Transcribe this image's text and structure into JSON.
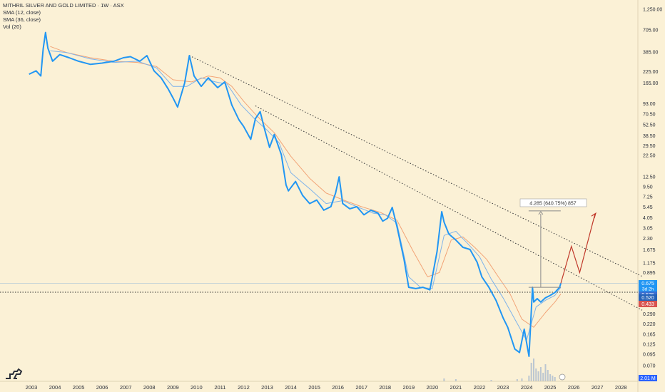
{
  "legend": {
    "title": "MITHRIL SILVER AND GOLD LIMITED · 1W · ASX",
    "sma12": "SMA (12, close)",
    "sma36": "SMA (36, close)",
    "vol": "Vol (20)"
  },
  "colors": {
    "background": "#fbf1d6",
    "price": "#2196f3",
    "sma12": "#7fb3ea",
    "sma36": "#f2a477",
    "trend": "#444444",
    "projection": "#c0392b",
    "measure": "#8a8a8a",
    "badge_price": "#2196f3",
    "badge_sma12": "#3a6fd0",
    "badge_sma36": "#d9534f",
    "volume": "#9fb4cf"
  },
  "chart_data": {
    "type": "line",
    "x_axis_labels": [
      "2003",
      "2004",
      "2005",
      "2006",
      "2007",
      "2008",
      "2009",
      "2010",
      "2011",
      "2012",
      "2013",
      "2014",
      "2015",
      "2016",
      "2017",
      "2018",
      "2019",
      "2020",
      "2021",
      "2022",
      "2023",
      "2024",
      "2025",
      "2026",
      "2027",
      "2028"
    ],
    "y_axis_labels": [
      "1,250.00",
      "705.00",
      "385.00",
      "225.00",
      "165.00",
      "93.00",
      "70.50",
      "52.50",
      "38.50",
      "29.50",
      "22.50",
      "12.50",
      "9.50",
      "7.25",
      "5.45",
      "4.05",
      "3.05",
      "2.30",
      "1.675",
      "1.175",
      "0.895",
      "0.675",
      "0.525",
      "0.390",
      "0.290",
      "0.220",
      "0.165",
      "0.125",
      "0.095",
      "0.070",
      "0.050"
    ],
    "y_scale": "log",
    "series": [
      {
        "name": "price",
        "x": [
          2002.9,
          2003.2,
          2003.4,
          2003.5,
          2003.6,
          2003.7,
          2003.9,
          2004.2,
          2004.6,
          2005.0,
          2005.5,
          2006.0,
          2006.5,
          2006.9,
          2007.2,
          2007.6,
          2007.9,
          2008.2,
          2008.5,
          2008.8,
          2009.0,
          2009.2,
          2009.5,
          2009.7,
          2009.9,
          2010.2,
          2010.5,
          2010.9,
          2011.2,
          2011.5,
          2011.8,
          2012.0,
          2012.3,
          2012.5,
          2012.7,
          2012.9,
          2013.1,
          2013.3,
          2013.6,
          2013.8,
          2013.9,
          2014.2,
          2014.5,
          2014.8,
          2015.1,
          2015.4,
          2015.7,
          2015.9,
          2016.05,
          2016.2,
          2016.5,
          2016.8,
          2017.1,
          2017.4,
          2017.7,
          2017.9,
          2018.1,
          2018.3,
          2018.5,
          2018.8,
          2019.0,
          2019.3,
          2019.6,
          2019.9,
          2020.2,
          2020.4,
          2020.5,
          2020.7,
          2021.0,
          2021.3,
          2021.6,
          2021.9,
          2022.1,
          2022.4,
          2022.7,
          2023.0,
          2023.2,
          2023.5,
          2023.7,
          2023.9,
          2024.1,
          2024.25,
          2024.3,
          2024.45,
          2024.6,
          2024.8,
          2025.0,
          2025.2,
          2025.4,
          2025.45
        ],
        "y": [
          210,
          230,
          200,
          420,
          660,
          430,
          300,
          360,
          330,
          300,
          275,
          285,
          300,
          330,
          340,
          300,
          350,
          230,
          190,
          140,
          110,
          85,
          165,
          350,
          200,
          150,
          190,
          145,
          170,
          90,
          60,
          50,
          35,
          62,
          75,
          45,
          28,
          40,
          23,
          10,
          8.5,
          11,
          7.5,
          6,
          6.6,
          5,
          5.5,
          8,
          12.5,
          6,
          5.2,
          5.5,
          4.4,
          5,
          4.6,
          3.7,
          4,
          5.4,
          3.2,
          1.3,
          0.6,
          0.58,
          0.6,
          0.56,
          1.6,
          4.8,
          3.6,
          2.6,
          2.2,
          1.8,
          1.7,
          1.2,
          0.8,
          0.6,
          0.42,
          0.26,
          0.2,
          0.11,
          0.1,
          0.19,
          0.09,
          0.6,
          0.4,
          0.44,
          0.4,
          0.45,
          0.48,
          0.52,
          0.6,
          0.67
        ]
      },
      {
        "name": "SMA (12, close)",
        "x": [
          2003.8,
          2004.5,
          2005.5,
          2006.5,
          2007.5,
          2008.3,
          2009.0,
          2009.6,
          2010.2,
          2010.8,
          2011.3,
          2011.9,
          2012.5,
          2013.0,
          2013.5,
          2014.0,
          2014.8,
          2015.5,
          2016.2,
          2016.8,
          2017.5,
          2018.0,
          2018.5,
          2019.0,
          2019.5,
          2020.0,
          2020.5,
          2021.0,
          2021.5,
          2022.0,
          2022.5,
          2023.0,
          2023.5,
          2024.0,
          2024.4,
          2024.8,
          2025.2,
          2025.45
        ],
        "y": [
          400,
          380,
          320,
          290,
          300,
          250,
          150,
          150,
          190,
          170,
          160,
          90,
          60,
          45,
          32,
          14,
          9,
          6,
          6.5,
          5.5,
          4.6,
          4.4,
          3.5,
          0.8,
          0.6,
          0.58,
          2.5,
          2.8,
          2,
          1.4,
          0.75,
          0.45,
          0.25,
          0.14,
          0.35,
          0.42,
          0.48,
          0.6
        ]
      },
      {
        "name": "SMA (36, close)",
        "x": [
          2003.8,
          2004.5,
          2005.5,
          2006.5,
          2007.5,
          2008.3,
          2009.0,
          2009.8,
          2010.5,
          2011.0,
          2011.5,
          2012.0,
          2012.6,
          2013.3,
          2014.0,
          2014.8,
          2015.5,
          2016.3,
          2017.0,
          2017.8,
          2018.5,
          2019.2,
          2019.8,
          2020.3,
          2020.8,
          2021.3,
          2021.8,
          2022.3,
          2022.8,
          2023.3,
          2023.8,
          2024.3,
          2024.8,
          2025.2,
          2025.45
        ],
        "y": [
          450,
          380,
          330,
          300,
          290,
          260,
          180,
          170,
          200,
          190,
          150,
          100,
          65,
          42,
          22,
          12,
          8,
          6.5,
          5.5,
          4.7,
          3.8,
          1.6,
          0.8,
          0.9,
          2.2,
          2.4,
          1.8,
          1.3,
          0.8,
          0.5,
          0.25,
          0.2,
          0.3,
          0.4,
          0.5
        ]
      }
    ],
    "annotations": {
      "measure_label": "4.285 (640.75%) 857",
      "volume_badge": "2.01 M"
    },
    "badges": [
      {
        "value": "0.675",
        "sub": "3d 2h"
      },
      {
        "value": "0.525"
      },
      {
        "value": "0.520"
      },
      {
        "value": "0.433"
      }
    ],
    "trendlines": [
      {
        "from": [
          2009.7,
          350
        ],
        "to": [
          2028.9,
          0.81
        ]
      },
      {
        "from": [
          2012.5,
          88
        ],
        "to": [
          2028.9,
          0.32
        ]
      }
    ],
    "horizontal_line_value": 0.525,
    "projection": {
      "x": [
        2025.45,
        2025.9,
        2026.25,
        2026.9
      ],
      "y": [
        0.67,
        1.85,
        0.9,
        4.5
      ]
    },
    "measure": {
      "x": 2024.6,
      "from": 0.6,
      "to": 4.9
    }
  }
}
